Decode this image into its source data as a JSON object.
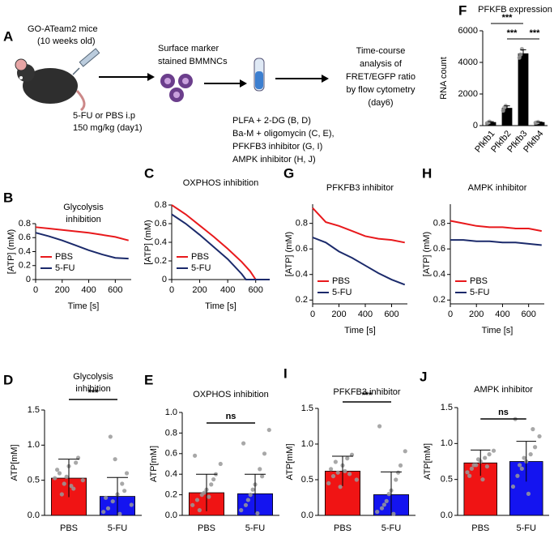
{
  "schematic": {
    "panel": "A",
    "mice": [
      "GO-ATeam2 mice",
      "(10 weeks old)"
    ],
    "injection": [
      "5-FU or PBS i.p",
      "150 mg/kg  (day1)"
    ],
    "cells": [
      "Surface marker",
      "stained BMMNCs"
    ],
    "treatments": [
      "PLFA + 2-DG (B, D)",
      "Ba-M + oligomycin (C, E),",
      "PFKFB3 inhibitor (G, I)",
      "AMPK inhibitor (H, J)"
    ],
    "analysis": [
      "Time-course",
      "analysis of",
      "FRET/EGFP ratio",
      "by flow cytometry",
      "(day6)"
    ]
  },
  "chart_data": [
    {
      "panel": "F",
      "type": "dotbar",
      "title": [
        "PFKFB expression"
      ],
      "ylabel": "RNA count",
      "categories": [
        "Pfkfb1",
        "Pfkfb2",
        "Pfkfb3",
        "Pfkfb4"
      ],
      "values": [
        200,
        1100,
        4550,
        200
      ],
      "errors": [
        50,
        150,
        250,
        30
      ],
      "points": [
        [
          150,
          200,
          250
        ],
        [
          950,
          1150,
          1250
        ],
        [
          4300,
          4500,
          4850
        ],
        [
          180,
          200,
          230
        ]
      ],
      "colors": [
        "#000000",
        "#000000",
        "#000000",
        "#000000"
      ],
      "ylim": [
        0,
        6000
      ],
      "yticks": [
        0,
        2000,
        4000,
        6000
      ],
      "annotations": [
        "***",
        "***",
        "***"
      ]
    },
    {
      "panel": "B",
      "type": "line",
      "title": [
        "Glycolysis",
        "inhibition"
      ],
      "xlabel": "Time [s]",
      "ylabel": "[ATP] (mM)",
      "x": [
        0,
        100,
        200,
        300,
        400,
        500,
        600,
        700
      ],
      "xlim": [
        0,
        720
      ],
      "xticks": [
        0,
        200,
        400,
        600
      ],
      "ylim": [
        0,
        0.8
      ],
      "yticks": [
        0,
        0.2,
        0.4,
        0.6,
        0.8
      ],
      "legend": "lower left",
      "series": [
        {
          "name": "PBS",
          "color": "#e8191c",
          "values": [
            0.75,
            0.73,
            0.71,
            0.69,
            0.67,
            0.64,
            0.61,
            0.56
          ]
        },
        {
          "name": "5-FU",
          "color": "#1b2a6b",
          "values": [
            0.67,
            0.62,
            0.56,
            0.49,
            0.42,
            0.36,
            0.31,
            0.3
          ]
        }
      ]
    },
    {
      "panel": "C",
      "type": "line",
      "title": [
        "OXPHOS inhibition"
      ],
      "xlabel": "Time [s]",
      "ylabel": "[ATP] (mM)",
      "x": [
        0,
        100,
        200,
        300,
        400,
        500,
        530,
        560,
        600,
        700
      ],
      "xlim": [
        0,
        700
      ],
      "xticks": [
        0,
        200,
        400,
        600
      ],
      "ylim": [
        0,
        0.8
      ],
      "yticks": [
        0,
        0.2,
        0.4,
        0.6,
        0.8
      ],
      "legend": "lower left",
      "series": [
        {
          "name": "PBS",
          "color": "#e8191c",
          "values": [
            0.8,
            0.7,
            0.58,
            0.46,
            0.33,
            0.19,
            0.14,
            0.09,
            0,
            0
          ]
        },
        {
          "name": "5-FU",
          "color": "#1b2a6b",
          "values": [
            0.7,
            0.6,
            0.48,
            0.35,
            0.22,
            0.06,
            0,
            0,
            0,
            0
          ]
        }
      ]
    },
    {
      "panel": "G",
      "type": "line",
      "title": [
        "PFKFB3 inhibitor"
      ],
      "xlabel": "Time [s]",
      "ylabel": "[ATP] (mM)",
      "x": [
        0,
        100,
        200,
        300,
        400,
        500,
        600,
        700
      ],
      "xlim": [
        0,
        720
      ],
      "xticks": [
        0,
        200,
        400,
        600
      ],
      "ylim": [
        0.17,
        0.95
      ],
      "yticks": [
        0.2,
        0.4,
        0.6,
        0.8
      ],
      "legend": "lower left",
      "series": [
        {
          "name": "PBS",
          "color": "#e8191c",
          "values": [
            0.92,
            0.81,
            0.78,
            0.74,
            0.7,
            0.68,
            0.67,
            0.65
          ]
        },
        {
          "name": "5-FU",
          "color": "#1b2a6b",
          "values": [
            0.69,
            0.65,
            0.58,
            0.53,
            0.47,
            0.41,
            0.36,
            0.32
          ]
        }
      ]
    },
    {
      "panel": "H",
      "type": "line",
      "title": [
        "AMPK inhibitor"
      ],
      "xlabel": "Time [s]",
      "ylabel": "[ATP] (mM)",
      "x": [
        0,
        100,
        200,
        300,
        400,
        500,
        600,
        700
      ],
      "xlim": [
        0,
        720
      ],
      "xticks": [
        0,
        200,
        400,
        600
      ],
      "ylim": [
        0.17,
        0.95
      ],
      "yticks": [
        0.2,
        0.4,
        0.6,
        0.8
      ],
      "legend": "lower left",
      "series": [
        {
          "name": "PBS",
          "color": "#e8191c",
          "values": [
            0.82,
            0.8,
            0.78,
            0.77,
            0.77,
            0.76,
            0.76,
            0.74
          ]
        },
        {
          "name": "5-FU",
          "color": "#1b2a6b",
          "values": [
            0.67,
            0.67,
            0.66,
            0.66,
            0.65,
            0.65,
            0.64,
            0.63
          ]
        }
      ]
    },
    {
      "panel": "D",
      "type": "dotbar",
      "title": [
        "Glycolysis",
        "inhibition"
      ],
      "ylabel": "ATP[mM]",
      "categories": [
        "PBS",
        "5-FU"
      ],
      "values": [
        0.53,
        0.27
      ],
      "errors": [
        0.27,
        0.27
      ],
      "points": [
        [
          0.53,
          0.6,
          0.45,
          0.7,
          0.38,
          0.82,
          0.5,
          0.65,
          0.3,
          0.55,
          0.42,
          0.75
        ],
        [
          0.05,
          0.1,
          0.2,
          0.3,
          0.45,
          0.6,
          0.15,
          0.25,
          1.12,
          0.8,
          0.02,
          0.35
        ]
      ],
      "colors": [
        "#f01414",
        "#1414f0"
      ],
      "ylim": [
        0,
        1.5
      ],
      "yticks": [
        {
          "value": 0,
          "label": "0.0"
        },
        0.5,
        {
          "value": 1,
          "label": "1.0"
        },
        1.5
      ],
      "annotations": [
        "***"
      ]
    },
    {
      "panel": "E",
      "type": "dotbar",
      "title": [
        "OXPHOS inhibition"
      ],
      "ylabel": "ATP[mM]",
      "categories": [
        "PBS",
        "5-FU"
      ],
      "values": [
        0.22,
        0.21
      ],
      "errors": [
        0.18,
        0.19
      ],
      "points": [
        [
          0.1,
          0.15,
          0.2,
          0.25,
          0.3,
          0.4,
          0.5,
          0.58,
          0.05,
          0.22,
          0.18,
          0.35
        ],
        [
          0.05,
          0.1,
          0.2,
          0.3,
          0.45,
          0.6,
          0.83,
          0.7,
          0.15,
          0.25,
          0.02,
          0.38
        ]
      ],
      "colors": [
        "#f01414",
        "#1414f0"
      ],
      "ylim": [
        0,
        1
      ],
      "yticks": [
        {
          "value": 0,
          "label": "0.0"
        },
        0.2,
        0.4,
        0.6,
        0.8,
        {
          "value": 1,
          "label": "1.0"
        }
      ],
      "annotations": [
        "ns"
      ]
    },
    {
      "panel": "I",
      "type": "dotbar",
      "title": [
        "PFKFB3 inhibitor"
      ],
      "ylabel": "ATP[mM]",
      "categories": [
        "PBS",
        "5-FU"
      ],
      "values": [
        0.62,
        0.29
      ],
      "errors": [
        0.21,
        0.32
      ],
      "points": [
        [
          0.45,
          0.55,
          0.6,
          0.7,
          0.8,
          0.85,
          0.5,
          0.65,
          0.75,
          0.4,
          0.62,
          0.58
        ],
        [
          0.05,
          0.1,
          0.2,
          0.35,
          0.5,
          0.7,
          0.9,
          1.25,
          0.15,
          0.3,
          0.02,
          0.6
        ]
      ],
      "colors": [
        "#f01414",
        "#1414f0"
      ],
      "ylim": [
        0,
        1.5
      ],
      "yticks": [
        {
          "value": 0,
          "label": "0.0"
        },
        0.5,
        {
          "value": 1,
          "label": "1.0"
        },
        1.5
      ],
      "annotations": [
        "***"
      ]
    },
    {
      "panel": "J",
      "type": "dotbar",
      "title": [
        "AMPK inhibitor"
      ],
      "ylabel": "ATP[mM]",
      "categories": [
        "PBS",
        "5-FU"
      ],
      "values": [
        0.73,
        0.75
      ],
      "errors": [
        0.18,
        0.28
      ],
      "points": [
        [
          0.6,
          0.65,
          0.7,
          0.75,
          0.8,
          0.85,
          0.9,
          0.55,
          0.7,
          0.78,
          0.5,
          0.68
        ],
        [
          0.4,
          0.55,
          0.65,
          0.75,
          0.85,
          0.95,
          1.1,
          1.34,
          0.7,
          0.8,
          0.3,
          1.2
        ]
      ],
      "colors": [
        "#f01414",
        "#1414f0"
      ],
      "ylim": [
        0,
        1.5
      ],
      "yticks": [
        {
          "value": 0,
          "label": "0.0"
        },
        0.5,
        {
          "value": 1,
          "label": "1.0"
        },
        1.5
      ],
      "annotations": [
        "ns"
      ]
    }
  ]
}
